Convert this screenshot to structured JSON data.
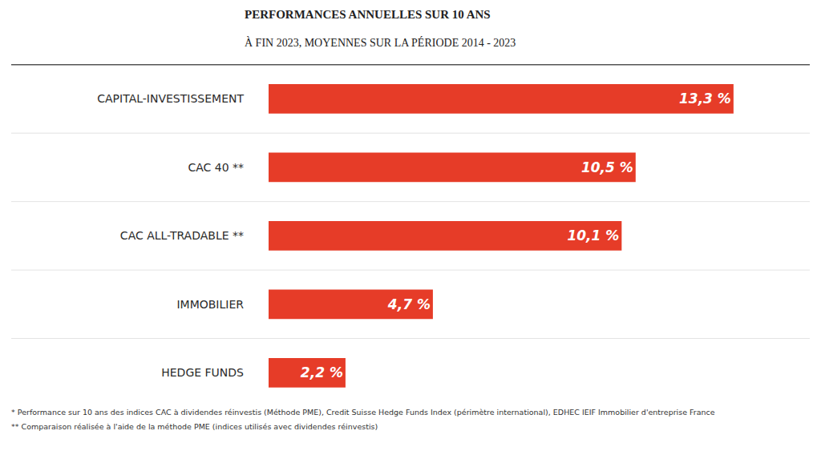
{
  "chart_data": {
    "type": "bar",
    "orientation": "horizontal",
    "title": "PERFORMANCES ANNUELLES SUR 10 ANS",
    "subtitle": "À FIN 2023, MOYENNES SUR LA PÉRIODE 2014 - 2023",
    "categories": [
      "CAPITAL-INVESTISSEMENT",
      "CAC 40 **",
      "CAC ALL-TRADABLE **",
      "IMMOBILIER",
      "HEDGE FUNDS"
    ],
    "values": [
      13.3,
      10.5,
      10.1,
      4.7,
      2.2
    ],
    "value_labels": [
      "13,3 %",
      "10,5 %",
      "10,1 %",
      "4,7 %",
      "2,2 %"
    ],
    "data_labels": true,
    "color": "#e63c28",
    "xlim": [
      0,
      15
    ],
    "grid": false,
    "tick_labels": "y",
    "notes": [
      "* Performance sur 10 ans des indices CAC à dividendes réinvestis (Méthode PME), Credit Suisse Hedge Funds Index (périmètre international), EDHEC IEIF Immobilier d'entreprise France",
      "** Comparaison réalisée à l'aide de la méthode PME (indices utilisés avec dividendes réinvestis)"
    ]
  }
}
